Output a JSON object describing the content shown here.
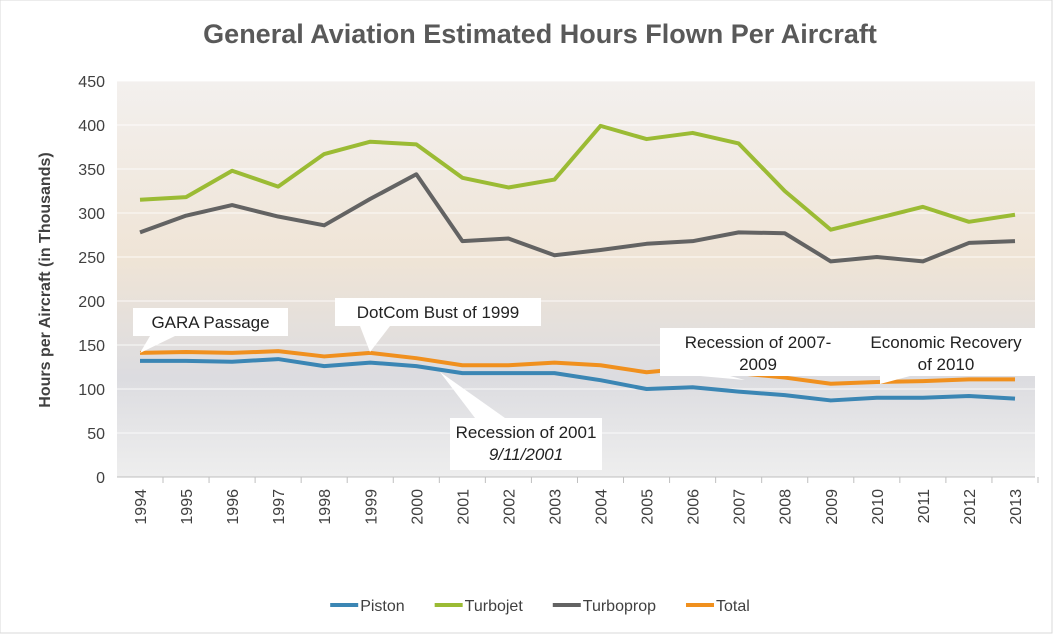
{
  "chart_data": {
    "type": "line",
    "title": "General Aviation Estimated Hours Flown Per Aircraft",
    "y_label": "Hours per Aircraft (in Thousands)",
    "categories": [
      "1994",
      "1995",
      "1996",
      "1997",
      "1998",
      "1999",
      "2000",
      "2001",
      "2002",
      "2003",
      "2004",
      "2005",
      "2006",
      "2007",
      "2008",
      "2009",
      "2010",
      "2011",
      "2012",
      "2013"
    ],
    "series": [
      {
        "name": "Piston",
        "color": "#3b86b4",
        "values": [
          132,
          132,
          131,
          134,
          126,
          130,
          126,
          118,
          118,
          118,
          110,
          100,
          102,
          97,
          93,
          87,
          90,
          90,
          92,
          89
        ]
      },
      {
        "name": "Turbojet",
        "color": "#9bbb34",
        "values": [
          315,
          318,
          348,
          330,
          367,
          381,
          378,
          340,
          329,
          338,
          399,
          384,
          391,
          379,
          325,
          281,
          294,
          307,
          290,
          298
        ]
      },
      {
        "name": "Turboprop",
        "color": "#636363",
        "values": [
          278,
          297,
          309,
          296,
          286,
          316,
          344,
          268,
          271,
          252,
          258,
          265,
          268,
          278,
          277,
          245,
          250,
          245,
          266,
          268
        ]
      },
      {
        "name": "Total",
        "color": "#f0901e",
        "values": [
          141,
          142,
          141,
          143,
          137,
          141,
          135,
          127,
          127,
          130,
          127,
          119,
          124,
          118,
          113,
          106,
          108,
          109,
          111,
          111
        ]
      }
    ],
    "annotations": [
      {
        "lines": [
          "GARA Passage"
        ]
      },
      {
        "lines": [
          "DotCom Bust of 1999"
        ]
      },
      {
        "lines": [
          "Recession of 2001",
          "9/11/2001"
        ]
      },
      {
        "lines": [
          "Recession of 2007-",
          "2009"
        ]
      },
      {
        "lines": [
          "Economic Recovery",
          "of 2010"
        ]
      }
    ],
    "ylim": [
      0,
      450
    ],
    "yticks": [
      0,
      50,
      100,
      150,
      200,
      250,
      300,
      350,
      400,
      450
    ],
    "grid": true,
    "legend": "bottom"
  }
}
